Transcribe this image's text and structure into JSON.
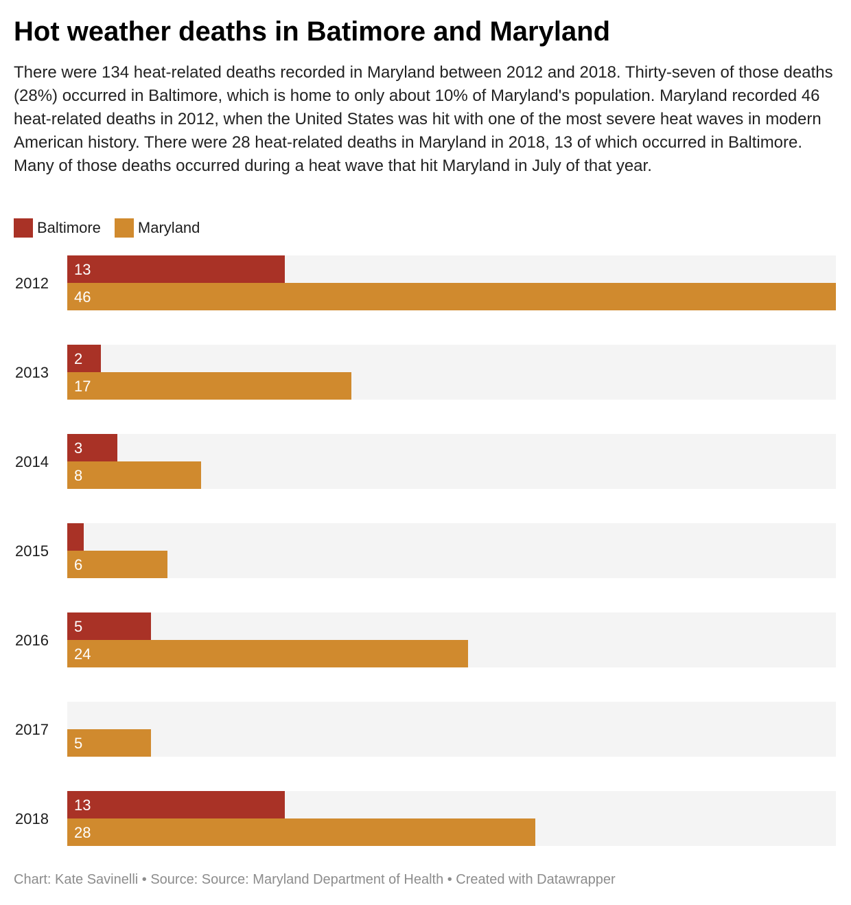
{
  "title": "Hot weather deaths in Batimore and Maryland",
  "description": "There were 134 heat-related deaths recorded in Maryland between 2012 and 2018. Thirty-seven of those deaths (28%) occurred in Baltimore, which is home to only about 10% of Maryland's population. Maryland recorded 46 heat-related deaths in 2012, when the United States was hit with one of the most severe heat waves in modern American history. There were 28 heat-related deaths in Maryland in 2018, 13 of which occurred in Baltimore. Many of those deaths occurred during a heat wave that hit Maryland in July of that year.",
  "footer": "Chart: Kate Savinelli • Source: Source: Maryland Department of Health • Created with Datawrapper",
  "colors": {
    "baltimore": "#a93226",
    "maryland": "#d08a2e",
    "track": "#f4f4f4"
  },
  "chart_data": {
    "type": "bar",
    "orientation": "horizontal",
    "title": "Hot weather deaths in Batimore and Maryland",
    "categories": [
      "2012",
      "2013",
      "2014",
      "2015",
      "2016",
      "2017",
      "2018"
    ],
    "series": [
      {
        "name": "Baltimore",
        "color": "#a93226",
        "values": [
          13,
          2,
          3,
          1,
          5,
          0,
          13
        ],
        "labels": [
          "13",
          "2",
          "3",
          "",
          "5",
          "",
          "13"
        ]
      },
      {
        "name": "Maryland",
        "color": "#d08a2e",
        "values": [
          46,
          17,
          8,
          6,
          24,
          5,
          28
        ],
        "labels": [
          "46",
          "17",
          "8",
          "6",
          "24",
          "5",
          "28"
        ]
      }
    ],
    "xlim": [
      0,
      46
    ],
    "legend": "top-left",
    "grid": false
  }
}
